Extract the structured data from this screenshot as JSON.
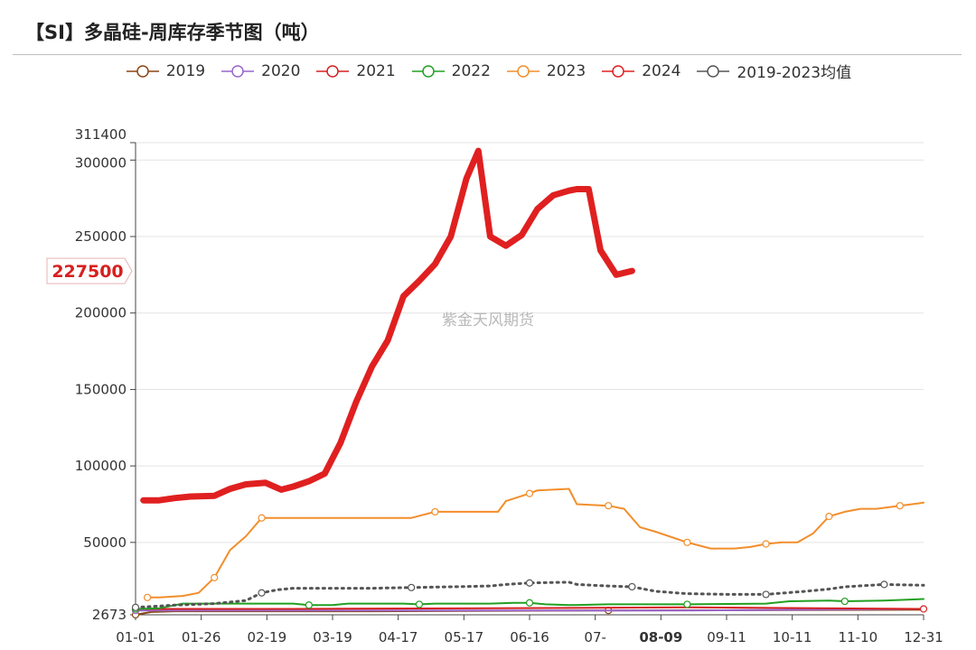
{
  "title": "【SI】多晶硅-周库存季节图（吨）",
  "watermark": "紫金天风期货",
  "chart_data": {
    "type": "line",
    "title": "【SI】多晶硅-周库存季节图（吨）",
    "x_ticks": [
      "01-01",
      "01-26",
      "02-19",
      "03-19",
      "04-17",
      "05-17",
      "06-16",
      "07-",
      "08-09",
      "09-11",
      "10-11",
      "11-10",
      "12-31"
    ],
    "highlight_x_tick": "08-09",
    "y_ticks": [
      2673,
      50000,
      100000,
      150000,
      200000,
      250000,
      300000,
      311400
    ],
    "ylim": [
      2673,
      311400
    ],
    "current_value_label": "227500",
    "legend_position": "top",
    "grid": true,
    "series": [
      {
        "name": "2019",
        "color": "#8B4513",
        "width": 2,
        "points": [
          [
            0,
            2673
          ],
          [
            0.02,
            4500
          ],
          [
            0.05,
            5000
          ],
          [
            0.3,
            5000
          ],
          [
            0.6,
            5500
          ],
          [
            1,
            6000
          ]
        ]
      },
      {
        "name": "2020",
        "color": "#9966CC",
        "width": 2,
        "points": [
          [
            0,
            5500
          ],
          [
            0.4,
            5500
          ],
          [
            0.7,
            5500
          ],
          [
            1,
            6500
          ]
        ]
      },
      {
        "name": "2021",
        "color": "#d62020",
        "width": 2,
        "points": [
          [
            0,
            6500
          ],
          [
            0.2,
            6500
          ],
          [
            0.45,
            7000
          ],
          [
            0.7,
            7500
          ],
          [
            1,
            6500
          ]
        ]
      },
      {
        "name": "2022",
        "color": "#22a022",
        "width": 2,
        "points": [
          [
            0,
            6500
          ],
          [
            0.03,
            7000
          ],
          [
            0.06,
            10000
          ],
          [
            0.2,
            10000
          ],
          [
            0.22,
            9000
          ],
          [
            0.25,
            9000
          ],
          [
            0.27,
            10000
          ],
          [
            0.34,
            10000
          ],
          [
            0.36,
            9500
          ],
          [
            0.38,
            10000
          ],
          [
            0.45,
            10000
          ],
          [
            0.48,
            10500
          ],
          [
            0.5,
            10500
          ],
          [
            0.52,
            9500
          ],
          [
            0.55,
            9000
          ],
          [
            0.6,
            9500
          ],
          [
            0.7,
            9500
          ],
          [
            0.8,
            10000
          ],
          [
            0.83,
            11500
          ],
          [
            0.88,
            12000
          ],
          [
            0.9,
            11500
          ],
          [
            0.95,
            12000
          ],
          [
            1,
            13000
          ]
        ]
      },
      {
        "name": "2023",
        "color": "#f28e2b",
        "width": 2,
        "points": [
          [
            0.015,
            14000
          ],
          [
            0.03,
            14000
          ],
          [
            0.06,
            15000
          ],
          [
            0.08,
            17000
          ],
          [
            0.1,
            27000
          ],
          [
            0.12,
            45000
          ],
          [
            0.14,
            54000
          ],
          [
            0.15,
            60000
          ],
          [
            0.16,
            66000
          ],
          [
            0.2,
            66000
          ],
          [
            0.3,
            66000
          ],
          [
            0.35,
            66000
          ],
          [
            0.38,
            70000
          ],
          [
            0.45,
            70000
          ],
          [
            0.46,
            70000
          ],
          [
            0.47,
            77000
          ],
          [
            0.5,
            82000
          ],
          [
            0.51,
            84000
          ],
          [
            0.55,
            85000
          ],
          [
            0.56,
            75000
          ],
          [
            0.6,
            74000
          ],
          [
            0.62,
            72000
          ],
          [
            0.64,
            60000
          ],
          [
            0.66,
            57000
          ],
          [
            0.7,
            50000
          ],
          [
            0.73,
            46000
          ],
          [
            0.76,
            46000
          ],
          [
            0.78,
            47000
          ],
          [
            0.8,
            49000
          ],
          [
            0.82,
            50000
          ],
          [
            0.84,
            50000
          ],
          [
            0.86,
            56000
          ],
          [
            0.88,
            67000
          ],
          [
            0.9,
            70000
          ],
          [
            0.92,
            72000
          ],
          [
            0.94,
            72000
          ],
          [
            0.97,
            74000
          ],
          [
            1,
            76000
          ]
        ]
      },
      {
        "name": "2024",
        "color": "#e02020",
        "width": 7,
        "points": [
          [
            0.01,
            77500
          ],
          [
            0.03,
            77500
          ],
          [
            0.05,
            79000
          ],
          [
            0.07,
            80000
          ],
          [
            0.1,
            80500
          ],
          [
            0.12,
            85000
          ],
          [
            0.14,
            88000
          ],
          [
            0.165,
            89000
          ],
          [
            0.185,
            84500
          ],
          [
            0.2,
            86500
          ],
          [
            0.22,
            90000
          ],
          [
            0.24,
            95000
          ],
          [
            0.26,
            115000
          ],
          [
            0.28,
            142000
          ],
          [
            0.3,
            165000
          ],
          [
            0.32,
            182000
          ],
          [
            0.34,
            211000
          ],
          [
            0.36,
            221000
          ],
          [
            0.38,
            232000
          ],
          [
            0.4,
            250000
          ],
          [
            0.42,
            288000
          ],
          [
            0.435,
            306000
          ],
          [
            0.45,
            250000
          ],
          [
            0.47,
            244000
          ],
          [
            0.49,
            251000
          ],
          [
            0.51,
            268000
          ],
          [
            0.53,
            277000
          ],
          [
            0.55,
            280000
          ],
          [
            0.56,
            281000
          ],
          [
            0.575,
            281000
          ],
          [
            0.59,
            241000
          ],
          [
            0.61,
            225000
          ],
          [
            0.63,
            227500
          ]
        ]
      },
      {
        "name": "2019-2023均值",
        "color": "#555555",
        "width": 3,
        "dashed": true,
        "points": [
          [
            0,
            7500
          ],
          [
            0.05,
            9000
          ],
          [
            0.1,
            10000
          ],
          [
            0.14,
            12000
          ],
          [
            0.16,
            17000
          ],
          [
            0.18,
            19000
          ],
          [
            0.2,
            20000
          ],
          [
            0.3,
            20000
          ],
          [
            0.35,
            20500
          ],
          [
            0.4,
            21000
          ],
          [
            0.45,
            21500
          ],
          [
            0.47,
            22500
          ],
          [
            0.5,
            23500
          ],
          [
            0.55,
            24000
          ],
          [
            0.56,
            22500
          ],
          [
            0.6,
            21500
          ],
          [
            0.63,
            21000
          ],
          [
            0.66,
            18000
          ],
          [
            0.7,
            16500
          ],
          [
            0.75,
            16000
          ],
          [
            0.8,
            16000
          ],
          [
            0.85,
            18000
          ],
          [
            0.88,
            19500
          ],
          [
            0.9,
            21000
          ],
          [
            0.95,
            22500
          ],
          [
            1,
            22000
          ]
        ]
      }
    ]
  }
}
